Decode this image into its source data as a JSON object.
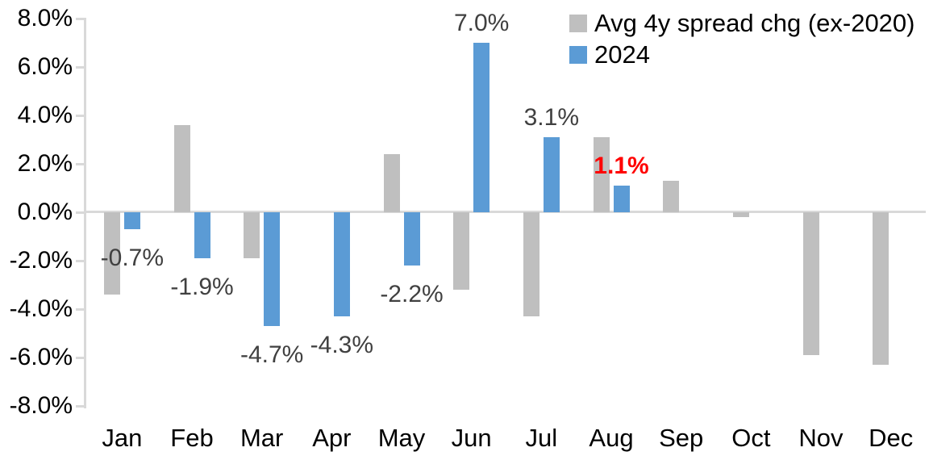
{
  "chart_data": {
    "type": "bar",
    "title": "",
    "xlabel": "",
    "ylabel": "",
    "categories": [
      "Jan",
      "Feb",
      "Mar",
      "Apr",
      "May",
      "Jun",
      "Jul",
      "Aug",
      "Sep",
      "Oct",
      "Nov",
      "Dec"
    ],
    "series": [
      {
        "name": "Avg 4y spread chg (ex-2020)",
        "color": "#bfbfbf",
        "values": [
          -3.4,
          3.6,
          -1.9,
          0.0,
          2.4,
          -3.2,
          -4.3,
          3.1,
          1.3,
          -0.2,
          -5.9,
          -6.3
        ]
      },
      {
        "name": "2024",
        "color": "#5b9bd5",
        "values": [
          -0.7,
          -1.9,
          -4.7,
          -4.3,
          -2.2,
          7.0,
          3.1,
          1.1,
          null,
          null,
          null,
          null
        ]
      }
    ],
    "data_labels_series": "2024",
    "data_labels": [
      {
        "text": "-0.7%",
        "color": "#404040",
        "bold": false
      },
      {
        "text": "-1.9%",
        "color": "#404040",
        "bold": false
      },
      {
        "text": "-4.7%",
        "color": "#404040",
        "bold": false
      },
      {
        "text": "-4.3%",
        "color": "#404040",
        "bold": false
      },
      {
        "text": "-2.2%",
        "color": "#404040",
        "bold": false
      },
      {
        "text": "7.0%",
        "color": "#404040",
        "bold": false
      },
      {
        "text": "3.1%",
        "color": "#404040",
        "bold": false
      },
      {
        "text": "1.1%",
        "color": "#ff0000",
        "bold": true
      },
      null,
      null,
      null,
      null
    ],
    "y_axis": {
      "min": -8,
      "max": 8,
      "step": 2,
      "tick_labels": [
        "8.0%",
        "6.0%",
        "4.0%",
        "2.0%",
        "0.0%",
        "-2.0%",
        "-4.0%",
        "-6.0%",
        "-8.0%"
      ],
      "format": "percent"
    },
    "legend": {
      "position": "top-right",
      "entries": [
        "Avg 4y spread chg (ex-2020)",
        "2024"
      ]
    },
    "grid": false,
    "colors": {
      "axis_line": "#d9d9d9",
      "axis_text": "#000000",
      "data_label_default": "#404040",
      "data_label_highlight": "#ff0000"
    }
  }
}
